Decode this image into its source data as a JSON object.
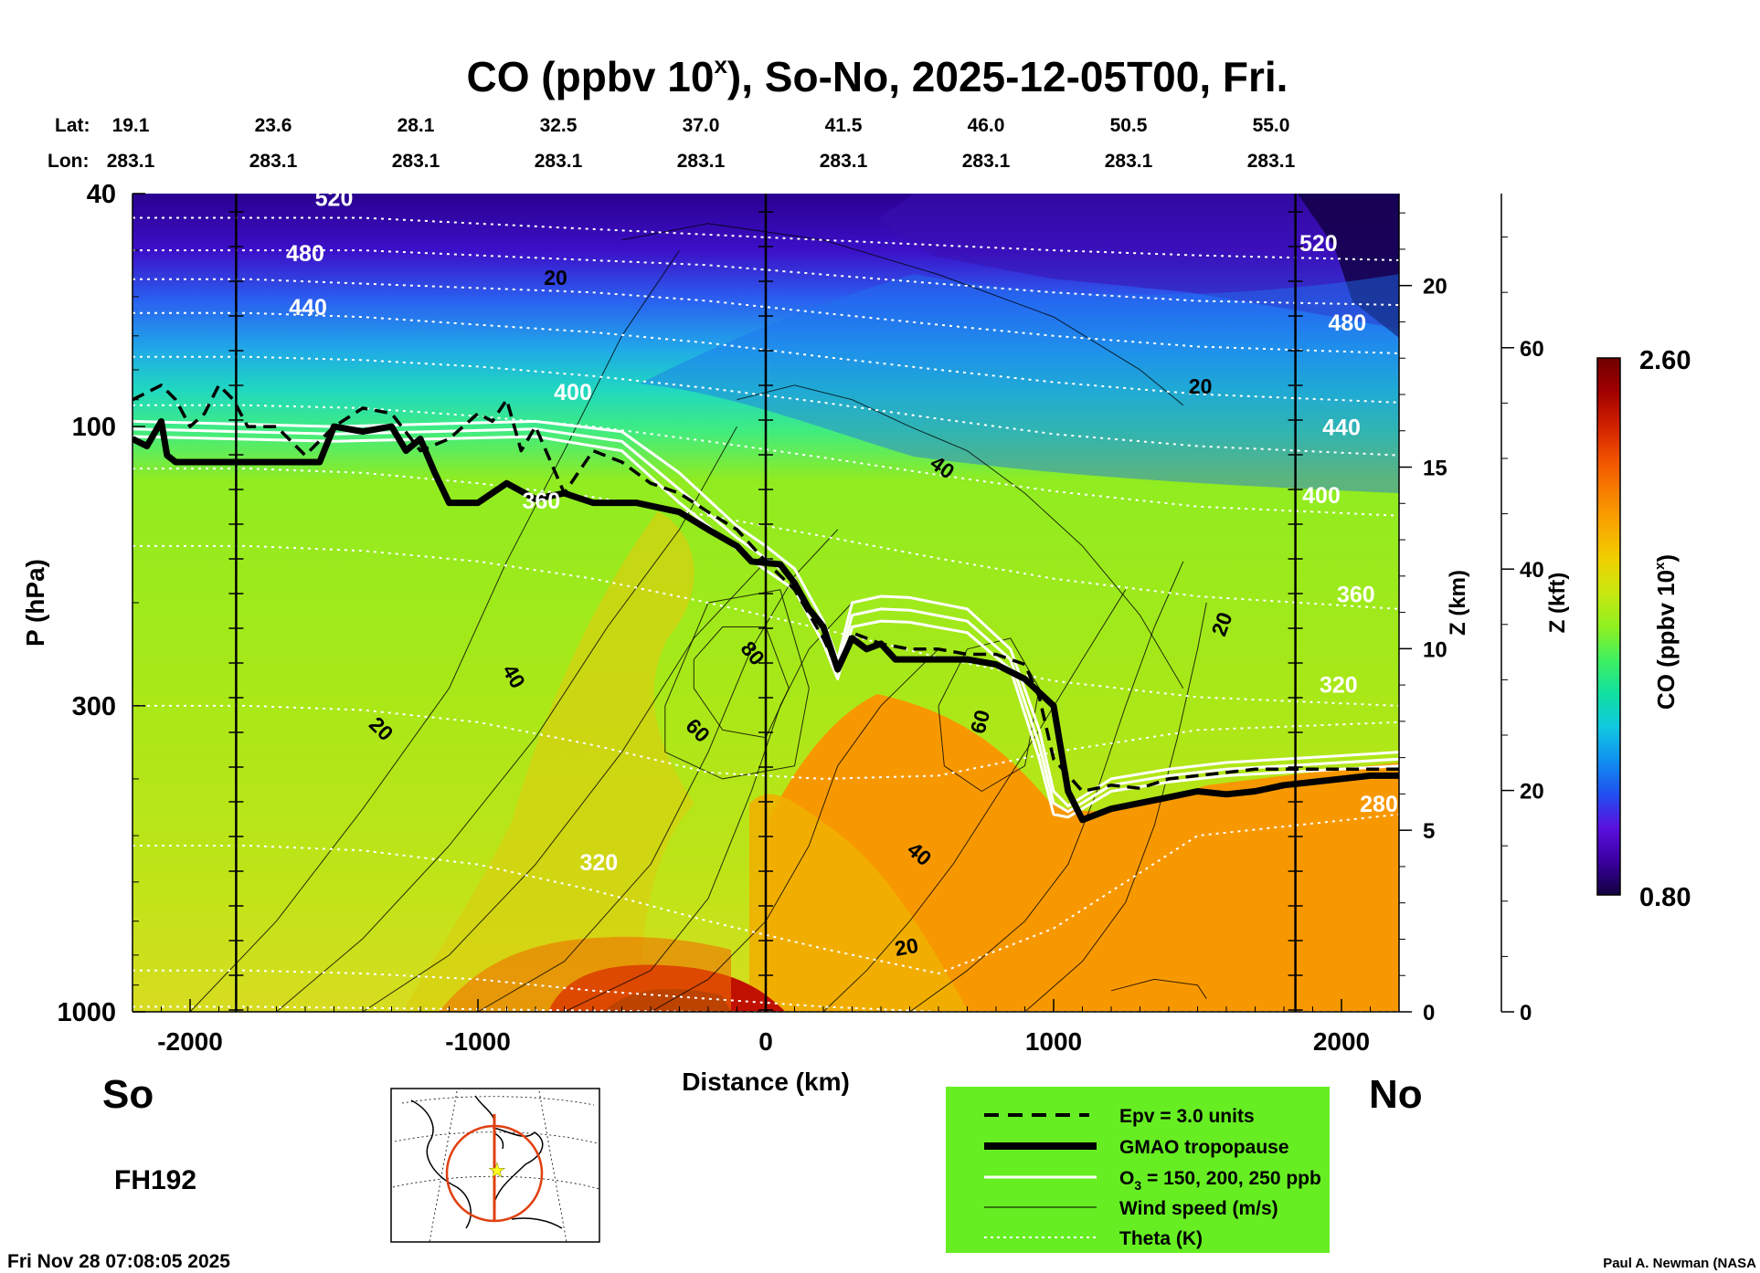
{
  "chart_data": {
    "type": "heatmap",
    "title_main": "CO (ppbv 10",
    "title_sup": "x",
    "title_rest": "), So-No, 2025-12-05T00, Fri.",
    "top_axis": {
      "lat_label": "Lat:",
      "lon_label": "Lon:",
      "lat": [
        "19.1",
        "23.6",
        "28.1",
        "32.5",
        "37.0",
        "41.5",
        "46.0",
        "50.5",
        "55.0"
      ],
      "lon": [
        "283.1",
        "283.1",
        "283.1",
        "283.1",
        "283.1",
        "283.1",
        "283.1",
        "283.1",
        "283.1"
      ]
    },
    "x_axis": {
      "label": "Distance (km)",
      "range": [
        -2200,
        2200
      ],
      "ticks": [
        -2000,
        -1000,
        0,
        1000,
        2000
      ],
      "tick_labels": [
        "-2000",
        "-1000",
        "0",
        "1000",
        "2000"
      ]
    },
    "y_axis": {
      "label": "P (hPa)",
      "scale": "log",
      "range": [
        1000,
        40
      ],
      "ticks": [
        40,
        100,
        300,
        1000
      ],
      "tick_labels": [
        "40",
        "100",
        "300",
        "1000"
      ]
    },
    "z_km_axis": {
      "label": "Z (km)",
      "ticks": [
        0,
        5,
        10,
        15,
        20
      ],
      "tick_labels": [
        "0",
        "5",
        "10",
        "15",
        "20"
      ]
    },
    "z_kft_axis": {
      "label": "Z (kft)",
      "ticks": [
        0,
        20,
        40,
        60
      ],
      "tick_labels": [
        "0",
        "20",
        "40",
        "60"
      ]
    },
    "colorbar": {
      "label_main": "CO (ppbv 10",
      "label_sup": "x",
      "label_end": ")",
      "min": 0.8,
      "max": 2.6,
      "min_label": "0.80",
      "max_label": "2.60",
      "colors": [
        "#120040",
        "#3a00a0",
        "#5a10e0",
        "#2050f0",
        "#1090f0",
        "#10c8e0",
        "#10e0a0",
        "#40f060",
        "#90f020",
        "#c8e810",
        "#f0d000",
        "#f8a800",
        "#f88000",
        "#f05000",
        "#d02000",
        "#a00000",
        "#700000"
      ]
    },
    "theta_labels": [
      {
        "text": "520",
        "x": -1500,
        "p": 41
      },
      {
        "text": "480",
        "x": -1600,
        "p": 51
      },
      {
        "text": "440",
        "x": -1590,
        "p": 63
      },
      {
        "text": "400",
        "x": -670,
        "p": 88
      },
      {
        "text": "360",
        "x": -780,
        "p": 135
      },
      {
        "text": "320",
        "x": -580,
        "p": 560
      },
      {
        "text": "520",
        "x": 1920,
        "p": 49
      },
      {
        "text": "480",
        "x": 2020,
        "p": 67
      },
      {
        "text": "440",
        "x": 2000,
        "p": 101
      },
      {
        "text": "400",
        "x": 1930,
        "p": 132
      },
      {
        "text": "360",
        "x": 2050,
        "p": 195
      },
      {
        "text": "320",
        "x": 1990,
        "p": 278
      },
      {
        "text": "280",
        "x": 2130,
        "p": 445
      }
    ],
    "wind_labels": [
      {
        "text": "20",
        "x": -730,
        "p": 56,
        "rot": 0
      },
      {
        "text": "20",
        "x": 1510,
        "p": 86,
        "rot": 0
      },
      {
        "text": "40",
        "x": 610,
        "p": 118,
        "rot": 35
      },
      {
        "text": "20",
        "x": 1590,
        "p": 218,
        "rot": -70
      },
      {
        "text": "80",
        "x": -50,
        "p": 245,
        "rot": 50
      },
      {
        "text": "40",
        "x": -880,
        "p": 268,
        "rot": 60
      },
      {
        "text": "60",
        "x": -240,
        "p": 332,
        "rot": 45
      },
      {
        "text": "20",
        "x": -1340,
        "p": 330,
        "rot": 45
      },
      {
        "text": "60",
        "x": 750,
        "p": 320,
        "rot": -75
      },
      {
        "text": "40",
        "x": 530,
        "p": 540,
        "rot": 40
      },
      {
        "text": "20",
        "x": 490,
        "p": 780,
        "rot": -10
      }
    ],
    "series": [
      {
        "name": "GMAO tropopause",
        "x": [
          -2200,
          -2150,
          -2100,
          -2080,
          -2050,
          -2000,
          -1800,
          -1550,
          -1500,
          -1400,
          -1300,
          -1250,
          -1200,
          -1150,
          -1100,
          -1000,
          -900,
          -800,
          -700,
          -600,
          -450,
          -300,
          -200,
          -100,
          -50,
          50,
          100,
          150,
          200,
          250,
          300,
          350,
          400,
          450,
          500,
          600,
          700,
          800,
          900,
          1000,
          1050,
          1100,
          1200,
          1400,
          1500,
          1600,
          1700,
          1800,
          1900,
          2000,
          2100,
          2200
        ],
        "p": [
          105,
          108,
          98,
          112,
          115,
          115,
          115,
          115,
          100,
          102,
          100,
          110,
          105,
          120,
          135,
          135,
          125,
          133,
          130,
          135,
          135,
          140,
          150,
          160,
          170,
          172,
          185,
          205,
          220,
          260,
          230,
          240,
          235,
          250,
          250,
          250,
          250,
          255,
          270,
          300,
          420,
          470,
          450,
          430,
          420,
          425,
          420,
          410,
          405,
          400,
          395,
          395
        ]
      },
      {
        "name": "Epv = 3.0 units",
        "x": [
          -2200,
          -2100,
          -2050,
          -2000,
          -1950,
          -1900,
          -1850,
          -1800,
          -1700,
          -1600,
          -1500,
          -1400,
          -1300,
          -1200,
          -1100,
          -1000,
          -950,
          -900,
          -850,
          -800,
          -700,
          -600,
          -500,
          -400,
          -300,
          -200,
          -100,
          0,
          100,
          200,
          250,
          300,
          400,
          500,
          600,
          700,
          800,
          900,
          950,
          1000,
          1100,
          1200,
          1300,
          1400,
          1500,
          1600,
          1700,
          1800,
          2000,
          2200
        ],
        "p": [
          90,
          85,
          90,
          100,
          95,
          85,
          90,
          100,
          100,
          112,
          100,
          93,
          95,
          110,
          105,
          95,
          98,
          90,
          110,
          100,
          130,
          110,
          115,
          125,
          130,
          140,
          150,
          170,
          190,
          230,
          260,
          225,
          235,
          240,
          240,
          245,
          245,
          255,
          290,
          370,
          420,
          410,
          415,
          400,
          395,
          390,
          385,
          385,
          385,
          385
        ]
      },
      {
        "name": "O3 = 150 ppb",
        "x": [
          -2200,
          -1500,
          -800,
          -500,
          -300,
          -100,
          0,
          100,
          200,
          250,
          300,
          400,
          500,
          700,
          850,
          950,
          1000,
          1050,
          1200,
          1400,
          1600,
          1800,
          2000,
          2200
        ],
        "p": [
          98,
          100,
          98,
          102,
          120,
          148,
          160,
          175,
          215,
          250,
          200,
          195,
          196,
          205,
          240,
          330,
          420,
          445,
          400,
          385,
          375,
          370,
          365,
          360
        ]
      },
      {
        "name": "O3 = 200 ppb",
        "x": [
          -2200,
          -1500,
          -800,
          -500,
          -300,
          -100,
          0,
          100,
          200,
          250,
          300,
          400,
          500,
          700,
          850,
          950,
          1000,
          1050,
          1200,
          1400,
          1600,
          1800,
          2000,
          2200
        ],
        "p": [
          101,
          103,
          101,
          106,
          128,
          155,
          168,
          182,
          225,
          260,
          210,
          205,
          206,
          215,
          250,
          350,
          440,
          455,
          410,
          395,
          385,
          380,
          375,
          370
        ]
      },
      {
        "name": "O3 = 250 ppb",
        "x": [
          -2200,
          -1500,
          -800,
          -500,
          -300,
          -100,
          0,
          100,
          200,
          250,
          300,
          400,
          500,
          700,
          850,
          950,
          1000,
          1050,
          1200,
          1400,
          1600,
          1800,
          2000,
          2200
        ],
        "p": [
          104,
          106,
          104,
          110,
          135,
          162,
          176,
          190,
          235,
          270,
          220,
          215,
          216,
          225,
          260,
          370,
          460,
          465,
          420,
          405,
          395,
          390,
          385,
          380
        ]
      }
    ]
  },
  "labels": {
    "so": "So",
    "no": "No",
    "forecast_hour": "FH192",
    "timestamp": "Fri Nov 28 07:08:05 2025",
    "credit": "Paul A. Newman (NASA"
  },
  "legend": {
    "epv": "Epv = 3.0 units",
    "tropopause": "GMAO tropopause",
    "o3_main": "O",
    "o3_sub": "3",
    "o3_rest": " = 150, 200, 250 ppb",
    "wind": "Wind speed (m/s)",
    "theta": "Theta (K)",
    "bg_color": "#66ee22"
  }
}
